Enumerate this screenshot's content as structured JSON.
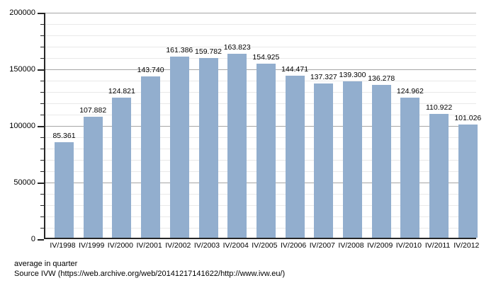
{
  "chart_data": {
    "type": "bar",
    "title": "",
    "xlabel": "",
    "ylabel": "",
    "categories": [
      "IV/1998",
      "IV/1999",
      "IV/2000",
      "IV/2001",
      "IV/2002",
      "IV/2003",
      "IV/2004",
      "IV/2005",
      "IV/2006",
      "IV/2007",
      "IV/2008",
      "IV/2009",
      "IV/2010",
      "IV/2011",
      "IV/2012"
    ],
    "values": [
      85361,
      107882,
      124821,
      143740,
      161386,
      159782,
      163823,
      154925,
      144471,
      137327,
      139300,
      136278,
      124962,
      110922,
      101026
    ],
    "value_labels": [
      "85.361",
      "107.882",
      "124.821",
      "143.740",
      "161.386",
      "159.782",
      "163.823",
      "154.925",
      "144.471",
      "137.327",
      "139.300",
      "136.278",
      "124.962",
      "110.922",
      "101.026"
    ],
    "ylim": [
      0,
      200000
    ],
    "y_major_step": 50000,
    "y_minor_step": 10000,
    "y_tick_labels": [
      "0",
      "50000",
      "100000",
      "150000",
      "200000"
    ],
    "grid": true,
    "legend_position": "none",
    "bar_color": "#92aece",
    "major_grid_color": "#a6a6a6",
    "minor_grid_color": "#e9e9e9",
    "axis_color": "#262626"
  },
  "footer": {
    "line1": "average in quarter",
    "line2": "Source IVW (https://web.archive.org/web/20141217141622/http://www.ivw.eu/)"
  }
}
